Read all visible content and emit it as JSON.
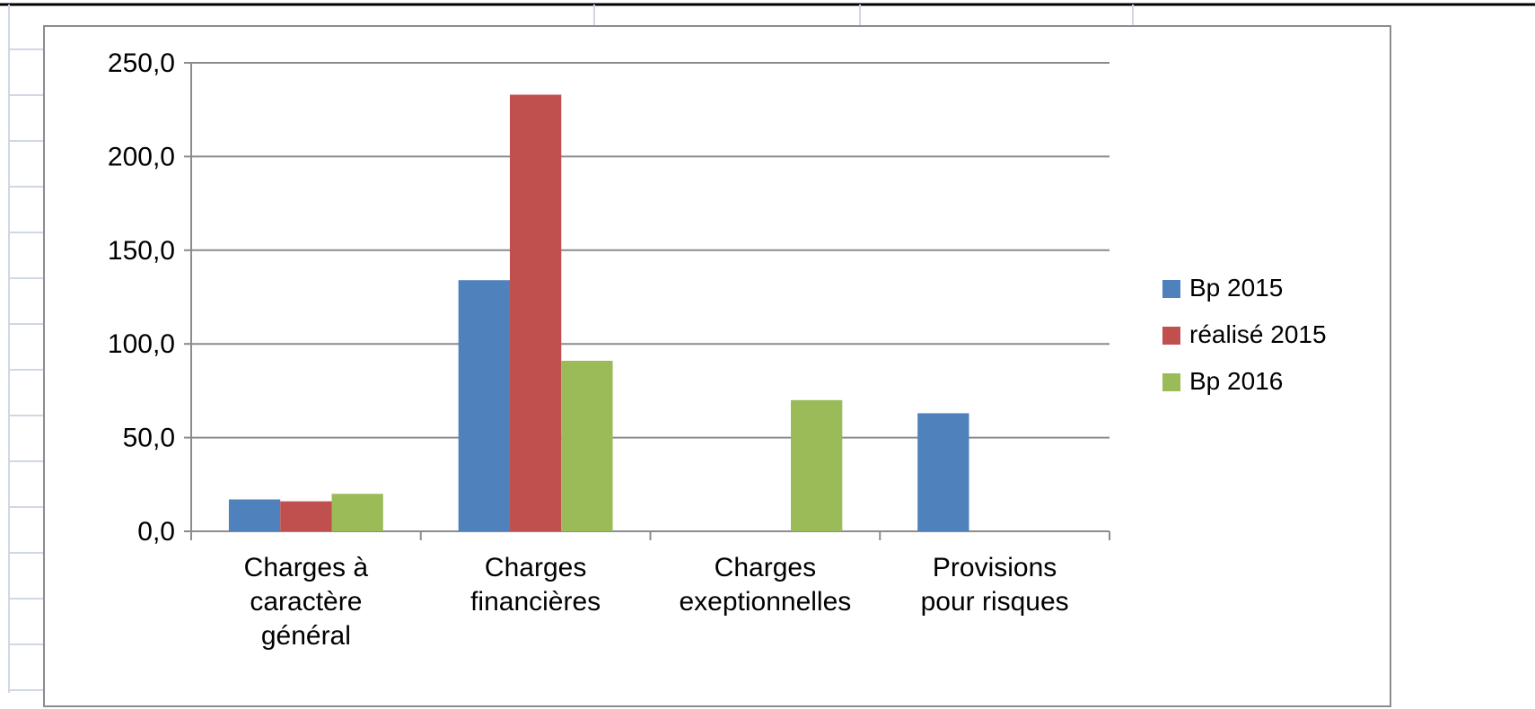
{
  "colors": {
    "bp2015": "#4f81bd",
    "realise2015": "#c0504d",
    "bp2016": "#9bbb59",
    "gridline": "#8c8c8c",
    "sheet_grid": "#d0d7e5"
  },
  "chart_data": {
    "type": "bar",
    "title": "",
    "xlabel": "",
    "ylabel": "",
    "ylim": [
      0,
      250
    ],
    "yticks": [
      "0,0",
      "50,0",
      "100,0",
      "150,0",
      "200,0",
      "250,0"
    ],
    "grid": true,
    "legend_position": "right",
    "categories": [
      [
        "Charges à",
        "caractère",
        "général"
      ],
      [
        "Charges",
        "financières"
      ],
      [
        "Charges",
        "exeptionnelles"
      ],
      [
        "Provisions",
        "pour risques"
      ]
    ],
    "series": [
      {
        "name": "Bp 2015",
        "color": "#4f81bd",
        "values": [
          17,
          134,
          0,
          63
        ]
      },
      {
        "name": "réalisé 2015",
        "color": "#c0504d",
        "values": [
          16,
          233,
          0,
          0
        ]
      },
      {
        "name": "Bp 2016",
        "color": "#9bbb59",
        "values": [
          20,
          91,
          70,
          0
        ]
      }
    ]
  }
}
